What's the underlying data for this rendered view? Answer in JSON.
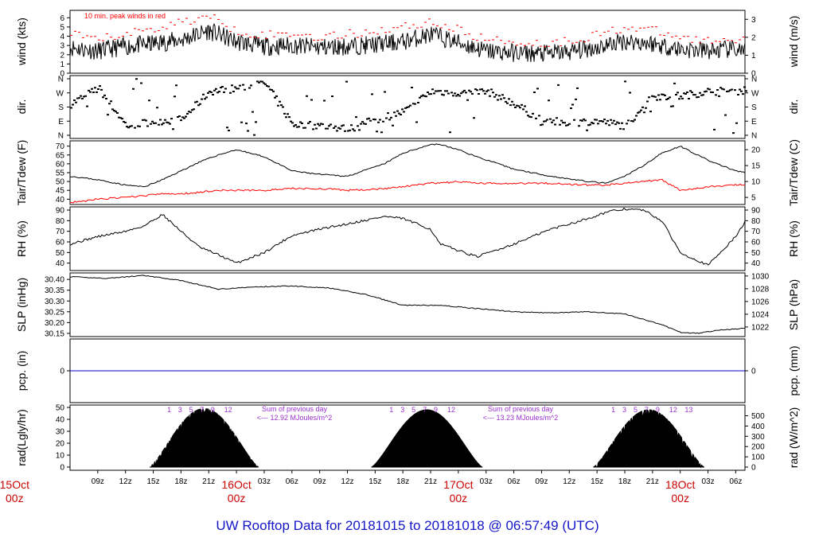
{
  "title": "UW Rooftop Data for 20181015  to  20181018 @ 06:57:49  (UTC)",
  "colors": {
    "title": "#1515c8",
    "date": "#cc0000",
    "peak": "#ff0000",
    "tdew": "#ff0000",
    "pcp": "#0000cc",
    "annot": "#9a32cd"
  },
  "time_axis": {
    "hour_labels": [
      "09z",
      "12z",
      "15z",
      "18z",
      "21z",
      "03z",
      "06z",
      "09z",
      "12z",
      "15z",
      "18z",
      "21z",
      "03z",
      "06z",
      "09z",
      "12z",
      "15z",
      "18z",
      "21z",
      "03z",
      "06z"
    ],
    "date_labels": [
      {
        "day": "15Oct",
        "hour": "00z"
      },
      {
        "day": "16Oct",
        "hour": "00z"
      },
      {
        "day": "17Oct",
        "hour": "00z"
      },
      {
        "day": "18Oct",
        "hour": "00z"
      }
    ]
  },
  "panels": {
    "wind": {
      "ylabel_left": "wind (kts)",
      "ylabel_right": "wind (m/s)",
      "note": "10 min. peak winds in red",
      "left_ticks": [
        "0",
        "1",
        "2",
        "3",
        "4",
        "5",
        "6"
      ],
      "right_ticks": [
        "0",
        "1",
        "2",
        "3"
      ]
    },
    "dir": {
      "ylabel_left": "dir.",
      "ylabel_right": "dir.",
      "ticks": [
        "N",
        "E",
        "S",
        "W",
        "N"
      ]
    },
    "temp": {
      "ylabel_left": "Tair/Tdew (F)",
      "ylabel_right": "Tair/Tdew (C)",
      "left_ticks": [
        "40",
        "45",
        "50",
        "55",
        "60",
        "65",
        "70"
      ],
      "right_ticks": [
        "5",
        "10",
        "15",
        "20"
      ]
    },
    "rh": {
      "ylabel_left": "RH (%)",
      "ylabel_right": "RH (%)",
      "ticks": [
        "40",
        "50",
        "60",
        "70",
        "80",
        "90"
      ]
    },
    "slp": {
      "ylabel_left": "SLP (inHg)",
      "ylabel_right": "SLP (hPa)",
      "left_ticks": [
        "30.15",
        "30.20",
        "30.25",
        "30.30",
        "30.35",
        "30.40"
      ],
      "right_ticks": [
        "1022",
        "1024",
        "1026",
        "1028",
        "1030"
      ]
    },
    "pcp": {
      "ylabel_left": "pcp. (in)",
      "ylabel_right": "pcp. (mm)",
      "left_ticks": [
        "0"
      ],
      "right_ticks": [
        "0"
      ]
    },
    "rad": {
      "ylabel_left": "rad(Lgly/hr)",
      "ylabel_right": "rad (W/m^2)",
      "left_ticks": [
        "0",
        "10",
        "20",
        "30",
        "40",
        "50"
      ],
      "right_ticks": [
        "0",
        "100",
        "200",
        "300",
        "400",
        "500"
      ],
      "uv_marks": [
        "1",
        "3",
        "5",
        "7",
        "9",
        "12"
      ],
      "uv_marks_last": [
        "1",
        "3",
        "5",
        "7",
        "9",
        "12",
        "13"
      ],
      "sums": [
        {
          "line1": "Sum of previous day",
          "line2": "<--- 12.92 MJoules/m^2"
        },
        {
          "line1": "Sum of previous day",
          "line2": "<--- 13.23 MJoules/m^2"
        }
      ]
    }
  },
  "chart_data": [
    {
      "type": "line",
      "name": "wind",
      "xlabel": "",
      "ylabel": "wind (kts)",
      "ylim": [
        0,
        6.8
      ],
      "x_hours": [
        6,
        9,
        12,
        15,
        18,
        21,
        24,
        27,
        30,
        33,
        36,
        39,
        42,
        45,
        48,
        51,
        54,
        57,
        60,
        63,
        66,
        69,
        72,
        75,
        78,
        79
      ],
      "series": [
        {
          "name": "speed",
          "values": [
            2.8,
            2.4,
            2.9,
            3.2,
            3.6,
            4.6,
            3.4,
            2.9,
            3.0,
            2.8,
            2.9,
            3.1,
            3.4,
            4.2,
            3.3,
            2.4,
            2.2,
            2.1,
            2.3,
            2.8,
            3.5,
            3.2,
            2.6,
            2.4,
            2.6,
            2.4
          ]
        },
        {
          "name": "peak",
          "values": [
            4.1,
            3.6,
            4.3,
            4.8,
            5.6,
            6.1,
            4.6,
            4.1,
            4.3,
            3.9,
            4.2,
            4.6,
            5.0,
            5.6,
            4.6,
            3.6,
            3.4,
            3.2,
            3.5,
            4.2,
            5.0,
            4.6,
            3.8,
            3.5,
            3.8,
            3.4
          ]
        }
      ]
    },
    {
      "type": "scatter",
      "name": "dir",
      "ylabel": "dir.",
      "ylim": [
        0,
        360
      ],
      "x_hours": [
        6,
        9,
        12,
        15,
        18,
        21,
        24,
        27,
        30,
        33,
        36,
        39,
        42,
        45,
        48,
        51,
        54,
        57,
        60,
        63,
        66,
        69,
        72,
        75,
        78,
        79
      ],
      "values": [
        200,
        300,
        60,
        90,
        100,
        280,
        300,
        330,
        70,
        60,
        40,
        100,
        150,
        280,
        270,
        280,
        200,
        90,
        80,
        90,
        60,
        250,
        250,
        280,
        280,
        290
      ]
    },
    {
      "type": "line",
      "name": "temp",
      "ylabel": "Tair/Tdew (F)",
      "ylim": [
        37,
        73
      ],
      "x_hours": [
        6,
        9,
        12,
        14,
        16,
        18,
        20,
        22,
        24,
        27,
        30,
        33,
        36,
        40,
        42,
        45,
        46,
        48,
        50,
        54,
        58,
        62,
        64,
        66,
        68,
        70,
        72,
        75,
        78,
        79
      ],
      "series": [
        {
          "name": "Tair",
          "values": [
            53,
            51,
            48,
            47,
            51,
            56,
            61,
            65,
            68,
            64,
            56,
            54,
            53,
            60,
            66,
            71,
            71,
            68,
            64,
            57,
            53,
            50,
            49,
            53,
            59,
            66,
            70,
            62,
            56,
            55
          ]
        },
        {
          "name": "Tdew",
          "values": [
            38,
            40,
            41,
            42,
            43,
            43,
            44,
            45,
            45,
            45,
            46,
            46,
            45,
            46,
            47,
            49,
            49,
            50,
            49,
            49,
            49,
            48,
            48,
            49,
            50,
            51,
            45,
            47,
            48,
            48
          ]
        }
      ]
    },
    {
      "type": "line",
      "name": "rh",
      "ylabel": "RH (%)",
      "ylim": [
        33,
        93
      ],
      "x_hours": [
        6,
        9,
        12,
        14,
        16,
        18,
        20,
        22,
        24,
        27,
        30,
        33,
        36,
        40,
        42,
        45,
        46,
        48,
        50,
        54,
        58,
        62,
        64,
        66,
        68,
        70,
        72,
        75,
        78,
        79
      ],
      "values": [
        58,
        65,
        70,
        75,
        86,
        70,
        55,
        48,
        40,
        50,
        66,
        72,
        77,
        84,
        82,
        72,
        58,
        52,
        46,
        58,
        72,
        82,
        88,
        91,
        90,
        80,
        50,
        38,
        65,
        79
      ]
    },
    {
      "type": "line",
      "name": "slp",
      "ylabel": "SLP (inHg)",
      "ylim": [
        30.135,
        30.43
      ],
      "x_hours": [
        6,
        10,
        14,
        18,
        22,
        26,
        30,
        34,
        38,
        42,
        46,
        50,
        54,
        58,
        62,
        66,
        70,
        72,
        74,
        76,
        78,
        79
      ],
      "values": [
        30.412,
        30.405,
        30.418,
        30.395,
        30.355,
        30.365,
        30.37,
        30.36,
        30.33,
        30.28,
        30.28,
        30.265,
        30.25,
        30.245,
        30.25,
        30.24,
        30.19,
        30.155,
        30.15,
        30.165,
        30.17,
        30.175
      ]
    },
    {
      "type": "line",
      "name": "pcp",
      "ylabel": "pcp. (in)",
      "ylim": [
        -1,
        1
      ],
      "x_hours": [
        6,
        79
      ],
      "values": [
        0,
        0
      ]
    },
    {
      "type": "area",
      "name": "rad",
      "ylabel": "rad(Lgly/hr)",
      "ylim": [
        0,
        52
      ],
      "days": [
        {
          "rise": 14.6,
          "set": 26.4,
          "peak": 49
        },
        {
          "rise": 38.6,
          "set": 50.6,
          "peak": 48
        },
        {
          "rise": 62.6,
          "set": 74.6,
          "peak": 48
        }
      ]
    }
  ]
}
